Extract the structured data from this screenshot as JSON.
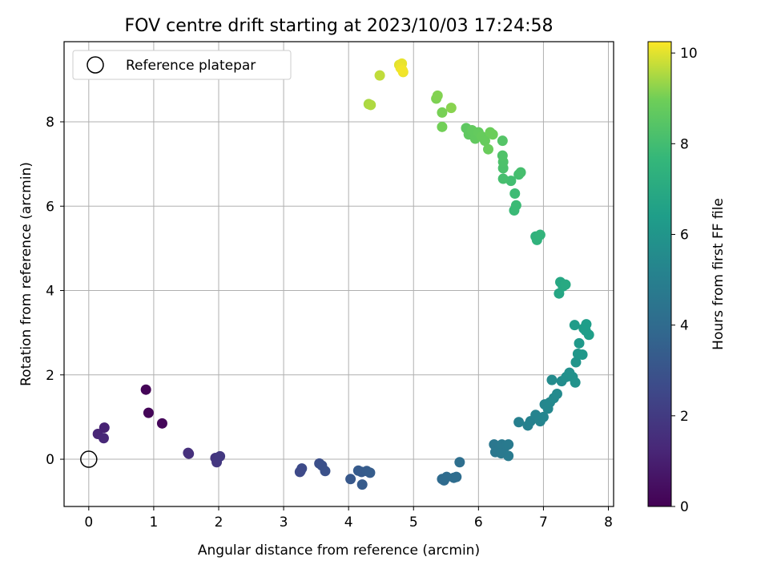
{
  "chart_data": {
    "type": "scatter",
    "title": "FOV centre drift starting at 2023/10/03 17:24:58",
    "xlabel": "Angular distance from reference (arcmin)",
    "ylabel": "Rotation from reference (arcmin)",
    "xlim": [
      -0.38,
      8.08
    ],
    "ylim": [
      -1.12,
      9.9
    ],
    "xticks": [
      0,
      1,
      2,
      3,
      4,
      5,
      6,
      7,
      8
    ],
    "yticks": [
      0,
      2,
      4,
      6,
      8
    ],
    "grid": true,
    "legend": {
      "position": "top-left",
      "entries": [
        "Reference platepar"
      ]
    },
    "reference_point": {
      "x": 0,
      "y": 0
    },
    "colorbar": {
      "label": "Hours from first FF file",
      "range": [
        0,
        10.25
      ],
      "ticks": [
        0,
        2,
        4,
        6,
        8,
        10
      ],
      "colormap": "viridis"
    },
    "series": [
      {
        "points": [
          {
            "x": 0.88,
            "y": 1.65,
            "c": 0.1
          },
          {
            "x": 0.92,
            "y": 1.1,
            "c": 0.15
          },
          {
            "x": 1.13,
            "y": 0.85,
            "c": 0.2
          },
          {
            "x": 0.14,
            "y": 0.6,
            "c": 1.2
          },
          {
            "x": 0.24,
            "y": 0.75,
            "c": 1.1
          },
          {
            "x": 0.23,
            "y": 0.5,
            "c": 1.3
          },
          {
            "x": 1.53,
            "y": 0.15,
            "c": 1.6
          },
          {
            "x": 1.54,
            "y": 0.13,
            "c": 1.6
          },
          {
            "x": 1.95,
            "y": 0.03,
            "c": 1.8
          },
          {
            "x": 1.97,
            "y": -0.07,
            "c": 1.85
          },
          {
            "x": 2.02,
            "y": 0.07,
            "c": 1.9
          },
          {
            "x": 3.26,
            "y": -0.28,
            "c": 2.6
          },
          {
            "x": 3.28,
            "y": -0.22,
            "c": 2.65
          },
          {
            "x": 3.25,
            "y": -0.3,
            "c": 2.6
          },
          {
            "x": 3.55,
            "y": -0.1,
            "c": 2.8
          },
          {
            "x": 3.59,
            "y": -0.15,
            "c": 2.85
          },
          {
            "x": 3.64,
            "y": -0.28,
            "c": 2.9
          },
          {
            "x": 4.03,
            "y": -0.47,
            "c": 3.2
          },
          {
            "x": 4.15,
            "y": -0.27,
            "c": 3.3
          },
          {
            "x": 4.2,
            "y": -0.3,
            "c": 3.3
          },
          {
            "x": 4.28,
            "y": -0.28,
            "c": 3.35
          },
          {
            "x": 4.33,
            "y": -0.32,
            "c": 3.4
          },
          {
            "x": 4.21,
            "y": -0.6,
            "c": 3.3
          },
          {
            "x": 5.44,
            "y": -0.47,
            "c": 4.0
          },
          {
            "x": 5.47,
            "y": -0.5,
            "c": 4.0
          },
          {
            "x": 5.51,
            "y": -0.42,
            "c": 4.05
          },
          {
            "x": 5.62,
            "y": -0.44,
            "c": 4.1
          },
          {
            "x": 5.66,
            "y": -0.42,
            "c": 4.1
          },
          {
            "x": 5.71,
            "y": -0.07,
            "c": 4.2
          },
          {
            "x": 6.24,
            "y": 0.35,
            "c": 4.6
          },
          {
            "x": 6.26,
            "y": 0.17,
            "c": 4.6
          },
          {
            "x": 6.32,
            "y": 0.22,
            "c": 4.65
          },
          {
            "x": 6.36,
            "y": 0.35,
            "c": 4.7
          },
          {
            "x": 6.41,
            "y": 0.3,
            "c": 4.7
          },
          {
            "x": 6.46,
            "y": 0.35,
            "c": 4.75
          },
          {
            "x": 6.46,
            "y": 0.08,
            "c": 4.75
          },
          {
            "x": 6.35,
            "y": 0.14,
            "c": 4.7
          },
          {
            "x": 6.62,
            "y": 0.88,
            "c": 5.0
          },
          {
            "x": 6.76,
            "y": 0.8,
            "c": 5.05
          },
          {
            "x": 6.8,
            "y": 0.9,
            "c": 5.1
          },
          {
            "x": 6.88,
            "y": 1.05,
            "c": 5.15
          },
          {
            "x": 6.95,
            "y": 0.9,
            "c": 5.2
          },
          {
            "x": 7.0,
            "y": 1.0,
            "c": 5.25
          },
          {
            "x": 7.02,
            "y": 1.3,
            "c": 5.3
          },
          {
            "x": 7.07,
            "y": 1.2,
            "c": 5.35
          },
          {
            "x": 7.1,
            "y": 1.35,
            "c": 5.4
          },
          {
            "x": 7.16,
            "y": 1.45,
            "c": 5.45
          },
          {
            "x": 7.21,
            "y": 1.55,
            "c": 5.5
          },
          {
            "x": 7.13,
            "y": 1.88,
            "c": 5.55
          },
          {
            "x": 7.28,
            "y": 1.85,
            "c": 5.6
          },
          {
            "x": 7.35,
            "y": 1.95,
            "c": 5.7
          },
          {
            "x": 7.4,
            "y": 2.05,
            "c": 5.75
          },
          {
            "x": 7.45,
            "y": 1.95,
            "c": 5.8
          },
          {
            "x": 7.49,
            "y": 1.82,
            "c": 5.85
          },
          {
            "x": 7.5,
            "y": 2.3,
            "c": 6.0
          },
          {
            "x": 7.53,
            "y": 2.5,
            "c": 6.1
          },
          {
            "x": 7.6,
            "y": 2.48,
            "c": 6.15
          },
          {
            "x": 7.55,
            "y": 2.75,
            "c": 6.2
          },
          {
            "x": 7.48,
            "y": 3.18,
            "c": 6.3
          },
          {
            "x": 7.62,
            "y": 3.1,
            "c": 6.35
          },
          {
            "x": 7.66,
            "y": 3.2,
            "c": 6.4
          },
          {
            "x": 7.7,
            "y": 2.95,
            "c": 6.45
          },
          {
            "x": 7.65,
            "y": 3.05,
            "c": 6.4
          },
          {
            "x": 7.24,
            "y": 3.93,
            "c": 6.8
          },
          {
            "x": 7.26,
            "y": 4.2,
            "c": 6.85
          },
          {
            "x": 7.3,
            "y": 4.1,
            "c": 6.9
          },
          {
            "x": 7.34,
            "y": 4.14,
            "c": 6.95
          },
          {
            "x": 6.88,
            "y": 5.28,
            "c": 7.4
          },
          {
            "x": 6.9,
            "y": 5.2,
            "c": 7.45
          },
          {
            "x": 6.95,
            "y": 5.32,
            "c": 7.5
          },
          {
            "x": 6.55,
            "y": 5.9,
            "c": 7.8
          },
          {
            "x": 6.58,
            "y": 6.02,
            "c": 7.85
          },
          {
            "x": 6.56,
            "y": 6.3,
            "c": 7.9
          },
          {
            "x": 6.5,
            "y": 6.6,
            "c": 8.0
          },
          {
            "x": 6.62,
            "y": 6.75,
            "c": 8.05
          },
          {
            "x": 6.65,
            "y": 6.8,
            "c": 8.1
          },
          {
            "x": 6.38,
            "y": 6.65,
            "c": 8.1
          },
          {
            "x": 6.38,
            "y": 6.9,
            "c": 8.2
          },
          {
            "x": 6.38,
            "y": 7.05,
            "c": 8.25
          },
          {
            "x": 6.37,
            "y": 7.2,
            "c": 8.3
          },
          {
            "x": 6.37,
            "y": 7.55,
            "c": 8.4
          },
          {
            "x": 5.81,
            "y": 7.85,
            "c": 8.6
          },
          {
            "x": 5.85,
            "y": 7.7,
            "c": 8.65
          },
          {
            "x": 5.9,
            "y": 7.8,
            "c": 8.7
          },
          {
            "x": 5.95,
            "y": 7.6,
            "c": 8.7
          },
          {
            "x": 6.0,
            "y": 7.75,
            "c": 8.75
          },
          {
            "x": 6.05,
            "y": 7.65,
            "c": 8.8
          },
          {
            "x": 6.1,
            "y": 7.55,
            "c": 8.8
          },
          {
            "x": 6.15,
            "y": 7.35,
            "c": 8.85
          },
          {
            "x": 6.18,
            "y": 7.75,
            "c": 8.9
          },
          {
            "x": 6.22,
            "y": 7.7,
            "c": 8.9
          },
          {
            "x": 5.44,
            "y": 7.88,
            "c": 9.0
          },
          {
            "x": 5.44,
            "y": 8.22,
            "c": 9.05
          },
          {
            "x": 5.35,
            "y": 8.55,
            "c": 9.1
          },
          {
            "x": 5.37,
            "y": 8.62,
            "c": 9.15
          },
          {
            "x": 5.58,
            "y": 8.33,
            "c": 9.2
          },
          {
            "x": 4.31,
            "y": 8.42,
            "c": 9.5
          },
          {
            "x": 4.34,
            "y": 8.4,
            "c": 9.55
          },
          {
            "x": 4.48,
            "y": 9.1,
            "c": 9.7
          },
          {
            "x": 4.78,
            "y": 9.35,
            "c": 10.0
          },
          {
            "x": 4.82,
            "y": 9.38,
            "c": 10.05
          },
          {
            "x": 4.84,
            "y": 9.18,
            "c": 10.1
          },
          {
            "x": 4.8,
            "y": 9.28,
            "c": 10.1
          },
          {
            "x": 4.83,
            "y": 9.22,
            "c": 10.15
          }
        ]
      }
    ]
  }
}
